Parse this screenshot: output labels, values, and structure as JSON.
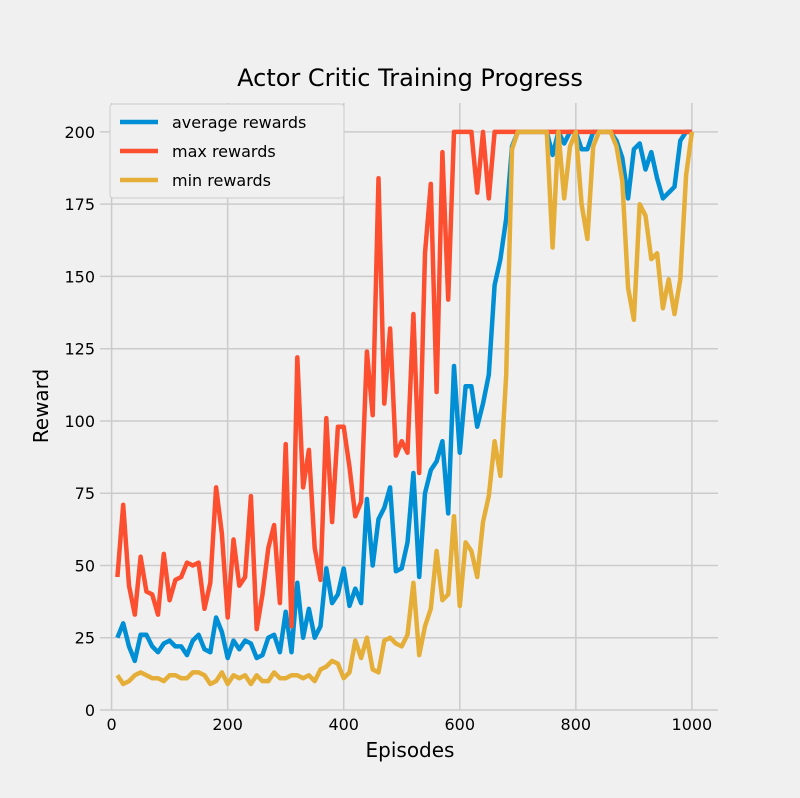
{
  "chart_data": {
    "type": "line",
    "title": "Actor Critic Training Progress",
    "xlabel": "Episodes",
    "ylabel": "Reward",
    "xlim": [
      -20,
      1045
    ],
    "ylim": [
      0,
      210
    ],
    "xticks": [
      0,
      200,
      400,
      600,
      800,
      1000
    ],
    "yticks": [
      0,
      25,
      50,
      75,
      100,
      125,
      150,
      175,
      200
    ],
    "grid": true,
    "legend_position": "top-left",
    "x": [
      10,
      20,
      30,
      40,
      50,
      60,
      70,
      80,
      90,
      100,
      110,
      120,
      130,
      140,
      150,
      160,
      170,
      180,
      190,
      200,
      210,
      220,
      230,
      240,
      250,
      260,
      270,
      280,
      290,
      300,
      310,
      320,
      330,
      340,
      350,
      360,
      370,
      380,
      390,
      400,
      410,
      420,
      430,
      440,
      450,
      460,
      470,
      480,
      490,
      500,
      510,
      520,
      530,
      540,
      550,
      560,
      570,
      580,
      590,
      600,
      610,
      620,
      630,
      640,
      650,
      660,
      670,
      680,
      690,
      700,
      710,
      720,
      730,
      740,
      750,
      760,
      770,
      780,
      790,
      800,
      810,
      820,
      830,
      840,
      850,
      860,
      870,
      880,
      890,
      900,
      910,
      920,
      930,
      940,
      950,
      960,
      970,
      980,
      990,
      1000
    ],
    "series": [
      {
        "name": "average rewards",
        "color": "#008fd5",
        "values": [
          25,
          30,
          22,
          17,
          26,
          26,
          22,
          20,
          23,
          24,
          22,
          22,
          19,
          24,
          26,
          21,
          20,
          32,
          27,
          18,
          24,
          21,
          24,
          23,
          18,
          19,
          25,
          26,
          20,
          34,
          20,
          44,
          25,
          35,
          25,
          29,
          49,
          37,
          40,
          49,
          36,
          42,
          37,
          73,
          50,
          66,
          70,
          77,
          48,
          49,
          58,
          82,
          46,
          75,
          83,
          86,
          93,
          68,
          119,
          89,
          112,
          112,
          98,
          106,
          116,
          147,
          156,
          170,
          195,
          200,
          200,
          200,
          200,
          200,
          200,
          192,
          200,
          196,
          200,
          200,
          194,
          194,
          200,
          200,
          200,
          200,
          197,
          191,
          177,
          194,
          196,
          187,
          193,
          184,
          177,
          179,
          181,
          197,
          200,
          200
        ]
      },
      {
        "name": "max rewards",
        "color": "#fc4f30",
        "values": [
          46,
          71,
          43,
          33,
          53,
          41,
          40,
          33,
          54,
          38,
          45,
          46,
          51,
          50,
          51,
          35,
          44,
          77,
          61,
          32,
          59,
          43,
          46,
          74,
          28,
          40,
          56,
          64,
          37,
          92,
          29,
          122,
          77,
          90,
          56,
          45,
          101,
          65,
          98,
          98,
          84,
          67,
          72,
          124,
          102,
          184,
          106,
          132,
          88,
          93,
          89,
          137,
          82,
          158,
          182,
          110,
          193,
          142,
          200,
          200,
          200,
          200,
          179,
          200,
          177,
          200,
          200,
          200,
          200,
          200,
          200,
          200,
          200,
          200,
          200,
          200,
          200,
          200,
          200,
          200,
          200,
          200,
          200,
          200,
          200,
          200,
          200,
          200,
          200,
          200,
          200,
          200,
          200,
          200,
          200,
          200,
          200,
          200,
          200,
          200
        ]
      },
      {
        "name": "min rewards",
        "color": "#e5ae38",
        "values": [
          12,
          9,
          10,
          12,
          13,
          12,
          11,
          11,
          10,
          12,
          12,
          11,
          11,
          13,
          13,
          12,
          9,
          10,
          13,
          9,
          12,
          11,
          12,
          9,
          12,
          10,
          10,
          13,
          11,
          11,
          12,
          12,
          11,
          12,
          10,
          14,
          15,
          17,
          16,
          11,
          13,
          24,
          18,
          25,
          14,
          13,
          24,
          25,
          23,
          22,
          26,
          44,
          19,
          29,
          35,
          55,
          38,
          40,
          67,
          36,
          58,
          55,
          46,
          65,
          74,
          93,
          81,
          116,
          194,
          200,
          200,
          200,
          200,
          200,
          200,
          160,
          200,
          177,
          195,
          200,
          175,
          163,
          195,
          200,
          200,
          200,
          195,
          183,
          146,
          135,
          175,
          171,
          156,
          158,
          139,
          149,
          137,
          149,
          185,
          200
        ]
      }
    ]
  }
}
